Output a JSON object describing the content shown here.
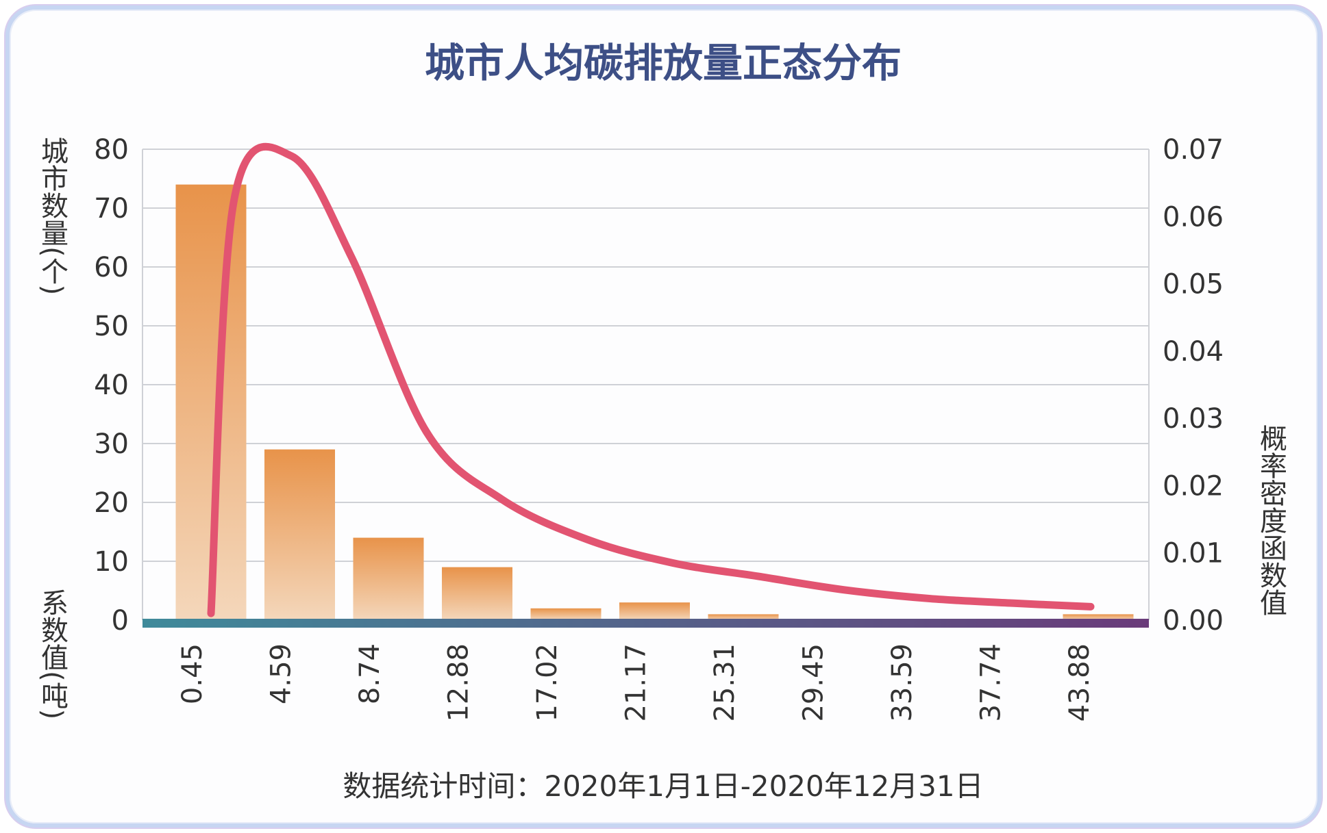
{
  "chart_data": {
    "type": "bar",
    "title": "城市人均碳排放量正态分布",
    "categories": [
      "0.45",
      "4.59",
      "8.74",
      "12.88",
      "17.02",
      "21.17",
      "25.31",
      "29.45",
      "33.59",
      "37.74",
      "43.88"
    ],
    "series": [
      {
        "type": "bar",
        "values": [
          74,
          29,
          14,
          9,
          2,
          3,
          1,
          0,
          0,
          0,
          1
        ]
      },
      {
        "type": "line",
        "x": [
          0.45,
          1.5,
          4.2,
          7.0,
          10.5,
          14.0,
          18.0,
          22.0,
          26.0,
          30.0,
          34.0,
          38.0,
          41.5
        ],
        "values": [
          0.001,
          0.062,
          0.069,
          0.054,
          0.028,
          0.018,
          0.012,
          0.0085,
          0.0065,
          0.0045,
          0.0032,
          0.0025,
          0.002
        ]
      }
    ],
    "ylabel_left": "城市数量(个)",
    "ylabel_right": "概率密度函数值",
    "xlabel": "系数值(吨)",
    "ylim_left": [
      0,
      80
    ],
    "ylim_right": [
      0,
      0.07
    ],
    "yticks_left": [
      "0",
      "10",
      "20",
      "30",
      "40",
      "50",
      "60",
      "70",
      "80"
    ],
    "yticks_right": [
      "0.00",
      "0.01",
      "0.02",
      "0.03",
      "0.04",
      "0.05",
      "0.06",
      "0.07"
    ],
    "footer": "数据统计时间：2020年1月1日-2020年12月31日",
    "grid": true,
    "colors": {
      "title": "#3d4f86",
      "bar_top": "#e8934a",
      "bar_bottom": "#f4d7bb",
      "curve": "#e25471",
      "grid": "#cfd1d6",
      "baseline_left": "#3f8a9a",
      "baseline_right": "#6a3b7a"
    }
  }
}
